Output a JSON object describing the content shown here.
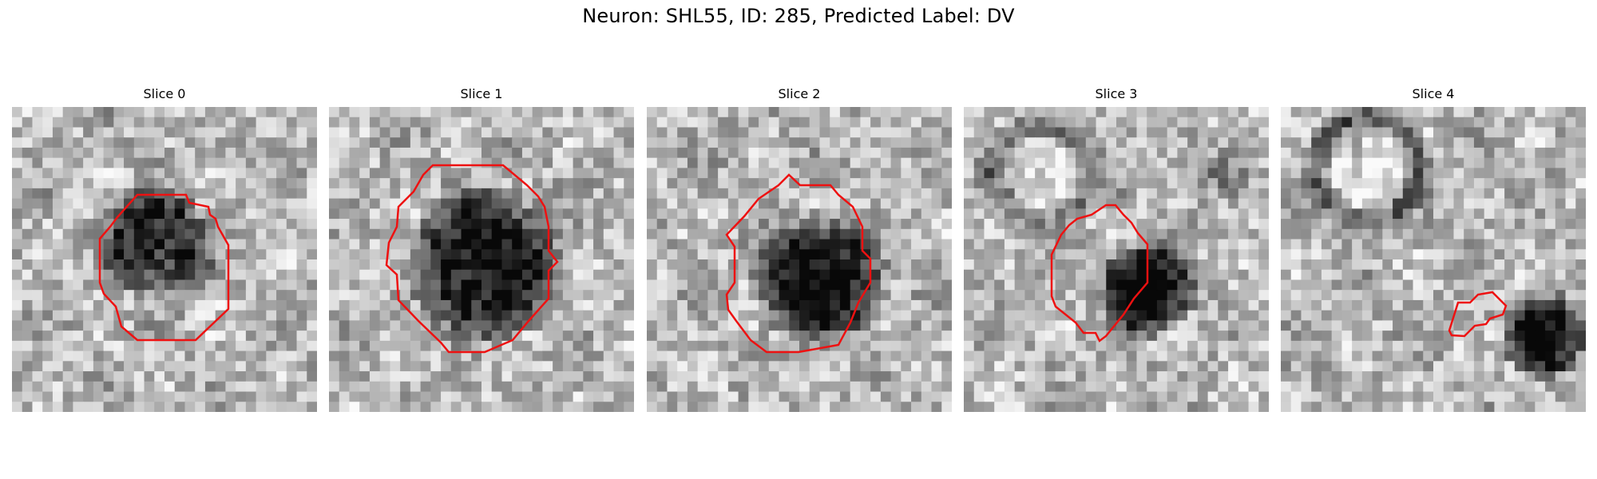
{
  "figure": {
    "title": "Neuron: SHL55, ID: 285, Predicted Label: DV",
    "neuron": "SHL55",
    "id": 285,
    "predicted_label": "DV",
    "contour_color": "#ee1111"
  },
  "panels": [
    {
      "title": "Slice 0",
      "index": 0
    },
    {
      "title": "Slice 1",
      "index": 1
    },
    {
      "title": "Slice 2",
      "index": 2
    },
    {
      "title": "Slice 3",
      "index": 3
    },
    {
      "title": "Slice 4",
      "index": 4
    }
  ]
}
